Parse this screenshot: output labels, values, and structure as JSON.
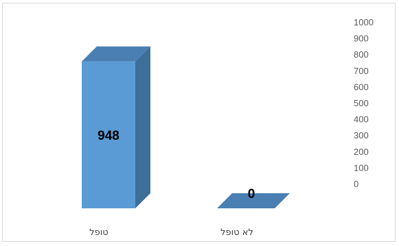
{
  "chart_data": {
    "type": "bar",
    "style": "3d-column",
    "categories": [
      "טופל",
      "לא טופל"
    ],
    "values": [
      948,
      0
    ],
    "data_labels": [
      "948",
      "0"
    ],
    "ylim": [
      0,
      1000
    ],
    "yticks": [
      0,
      100,
      200,
      300,
      400,
      500,
      600,
      700,
      800,
      900,
      1000
    ],
    "y_axis_position": "right",
    "grid": false,
    "legend": "none",
    "colors": {
      "front": "#5b9bd5",
      "side": "#3d6f98",
      "top": "#4a7fb3"
    }
  }
}
